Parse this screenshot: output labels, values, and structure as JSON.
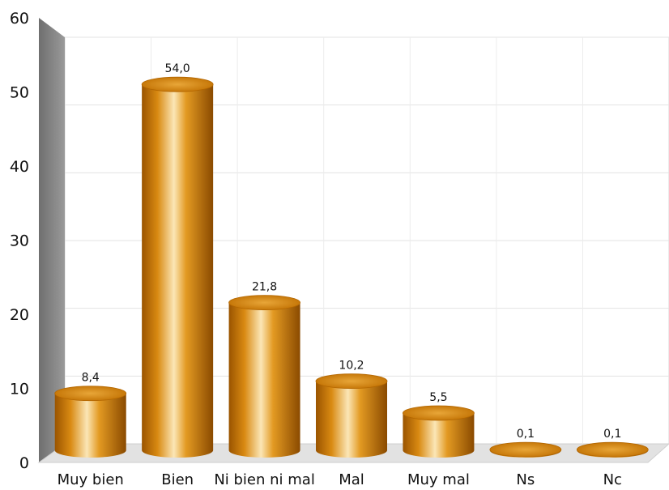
{
  "chart_data": {
    "type": "bar",
    "style": "3d-cylinder",
    "categories": [
      "Muy bien",
      "Bien",
      "Ni bien ni mal",
      "Mal",
      "Muy mal",
      "Ns",
      "Nc"
    ],
    "values": [
      8.4,
      54.0,
      21.8,
      10.2,
      5.5,
      0.1,
      0.1
    ],
    "value_labels": [
      "8,4",
      "54,0",
      "21,8",
      "10,2",
      "5,5",
      "0,1",
      "0,1"
    ],
    "ylim": [
      0,
      60
    ],
    "yticks": [
      "0",
      "10",
      "20",
      "30",
      "40",
      "50",
      "60"
    ],
    "grid": true,
    "legend": "none",
    "colors": {
      "bar": "#d9870a",
      "bar_light": "#fbe6b6",
      "bar_dark": "#8a4a00",
      "wall": "#888888"
    }
  }
}
